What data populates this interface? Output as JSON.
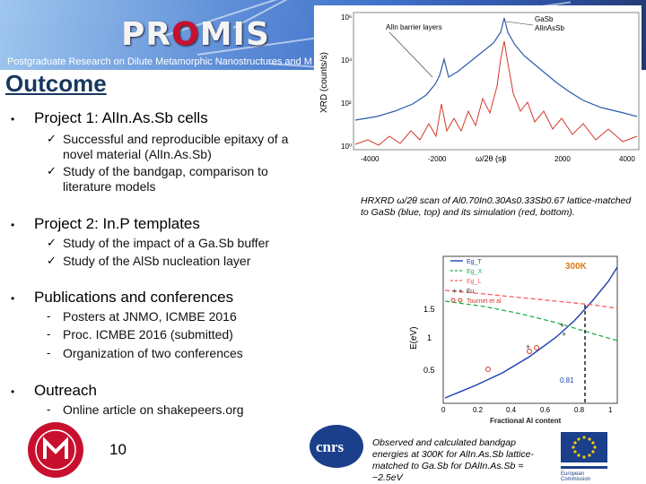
{
  "header": {
    "logo_text": "PROMIS",
    "subtitle": "Postgraduate Research on Dilute Metamorphic Nanostructures and Metamaterials"
  },
  "title": "Outcome",
  "sections": [
    {
      "heading": "Project 1: AlIn.As.Sb cells",
      "marker": "✓",
      "items": [
        "Successful and reproducible epitaxy of a",
        "novel material (AlIn.As.Sb)",
        "Study of the bandgap, comparison to",
        "literature models"
      ]
    },
    {
      "heading": "Project 2: In.P templates",
      "marker": "✓",
      "items": [
        "Study of the impact of a Ga.Sb buffer",
        "Study of the AlSb nucleation layer"
      ]
    },
    {
      "heading": "Publications and conferences",
      "marker": "-",
      "items": [
        "Posters at JNMO, ICMBE 2016",
        "Proc. ICMBE 2016 (submitted)",
        "Organization of two conferences"
      ]
    },
    {
      "heading": "Outreach",
      "marker": "-",
      "items": [
        "Online article on shakepeers.org"
      ]
    }
  ],
  "bullet_char": "•",
  "xrd_figure": {
    "ylabel": "XRD (counts/s)",
    "xlabel": "ω/2θ (s)",
    "yticks": [
      "10⁶",
      "10⁴",
      "10²",
      "10⁰"
    ],
    "xticks": [
      "-4000",
      "-2000",
      "0",
      "2000",
      "4000"
    ],
    "label_left": "AlIn barrier layers",
    "label_right_1": "GaSb",
    "label_right_2": "AlInAsSb",
    "caption": "HRXRD ω/2θ scan of Al0.70In0.30As0.33Sb0.67 lattice-matched to GaSb (blue, top) and its simulation (red, bottom).",
    "colors": {
      "measured": "#2a5caa",
      "simulated": "#d23a2a"
    }
  },
  "bandgap_figure": {
    "legend": [
      "Eg_T",
      "Eg_X",
      "Eg_L",
      "Fu",
      "Tournet et al"
    ],
    "temperature_label": "300K",
    "ylabel": "E(eV)",
    "xlabel": "Fractional Al content",
    "yticks": [
      "1.5",
      "1",
      "0.5"
    ],
    "xticks": [
      "0",
      "0.2",
      "0.4",
      "0.6",
      "0.8",
      "1"
    ],
    "annotation": "0.81",
    "caption": "Observed and calculated bandgap energies at 300K for AlIn.As.Sb lattice-matched to Ga.Sb for DAlIn.As.Sb = −2.5eV",
    "colors": {
      "Eg_T": "#1f3fb0",
      "Eg_X": "#22b04a",
      "Eg_L": "#ff5a5a",
      "temp": "#e07a10"
    }
  },
  "page_number": "10"
}
